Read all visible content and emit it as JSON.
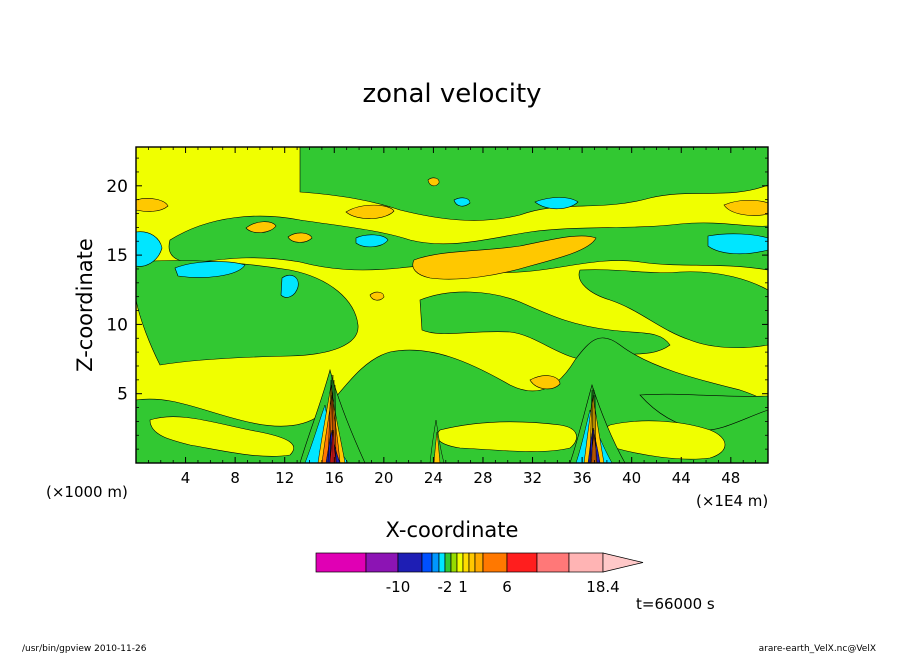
{
  "chart_data": {
    "type": "heatmap",
    "title": "zonal velocity",
    "xlabel": "X-coordinate",
    "ylabel": "Z-coordinate",
    "x_unit": "(×1000 m)",
    "x_scale_note": "(×1E4 m)",
    "x_ticks": [
      4,
      8,
      12,
      16,
      20,
      24,
      28,
      32,
      36,
      40,
      44,
      48
    ],
    "y_ticks": [
      5,
      10,
      15,
      20
    ],
    "xlim": [
      0,
      51
    ],
    "ylim": [
      0,
      22.8
    ],
    "colorbar": {
      "labels": [
        {
          "text": "-10",
          "value": -10
        },
        {
          "text": "-2",
          "value": -2
        },
        {
          "text": "1",
          "value": 1
        },
        {
          "text": "6",
          "value": 6
        },
        {
          "text": "18.4",
          "value": 18.4
        }
      ],
      "bands": [
        {
          "lo": -20,
          "hi": -14,
          "color": "#e000b4"
        },
        {
          "lo": -14,
          "hi": -10,
          "color": "#8c14b4"
        },
        {
          "lo": -10,
          "hi": -6,
          "color": "#1e1eb4"
        },
        {
          "lo": -6,
          "hi": -4,
          "color": "#0050ff"
        },
        {
          "lo": -4,
          "hi": -3,
          "color": "#0096ff"
        },
        {
          "lo": -3,
          "hi": -2,
          "color": "#00e6ff"
        },
        {
          "lo": -2,
          "hi": -1,
          "color": "#32c832"
        },
        {
          "lo": -1,
          "hi": 0,
          "color": "#96dc00"
        },
        {
          "lo": 0,
          "hi": 1,
          "color": "#f0ff00"
        },
        {
          "lo": 1,
          "hi": 2,
          "color": "#ffdc00"
        },
        {
          "lo": 2,
          "hi": 3,
          "color": "#ffc800"
        },
        {
          "lo": 3,
          "hi": 4,
          "color": "#ffaa00"
        },
        {
          "lo": 4,
          "hi": 6,
          "color": "#ff7800"
        },
        {
          "lo": 6,
          "hi": 10,
          "color": "#ff1e1e"
        },
        {
          "lo": 10,
          "hi": 14,
          "color": "#ff7878"
        },
        {
          "lo": 14,
          "hi": 18.4,
          "color": "#ffb4b4"
        }
      ],
      "overflow_color": "#ffc8c8"
    },
    "field_bands": {
      "background": {
        "range": "0 to 1",
        "color": "#f0ff00"
      },
      "green": {
        "range": "-2 to 0",
        "color": "#32c832"
      },
      "orange": {
        "range": "2 to 4",
        "color": "#ffc800"
      },
      "cyan": {
        "range": "-3 to -2",
        "color": "#00e6ff"
      }
    },
    "grid": false,
    "legend": "bottom-colorbar"
  },
  "annotations": {
    "time": "t=66000 s",
    "footer_left": "/usr/bin/gpview   2010-11-26",
    "footer_right": "arare-earth_VelX.nc@VelX"
  }
}
